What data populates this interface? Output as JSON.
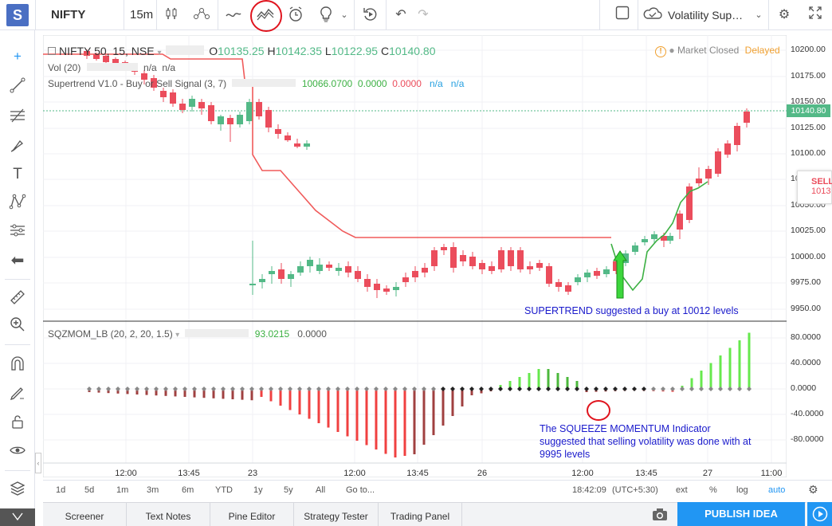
{
  "toolbar": {
    "logo": "S",
    "symbol": "NIFTY",
    "interval": "15m",
    "indicator_name": "Volatility Sup…"
  },
  "legend": {
    "title": "NIFTY 50, 15, NSE",
    "o_label": "O",
    "o_val": "10135.25",
    "h_label": "H",
    "h_val": "10142.35",
    "l_label": "L",
    "l_val": "10122.95",
    "c_label": "C",
    "c_val": "10140.80",
    "market_status": "Market Closed",
    "delayed": "Delayed",
    "vol_label": "Vol (20)",
    "vol_v1": "n/a",
    "vol_v2": "n/a",
    "st_label": "Supertrend V1.0 - Buy or Sell Signal (3, 7)",
    "st_v1": "10066.0700",
    "st_v2": "0.0000",
    "st_v3": "0.0000",
    "st_v4": "n/a",
    "st_v5": "n/a",
    "sq_label": "SQZMOM_LB (20, 2, 20, 1.5)",
    "sq_v1": "93.0215",
    "sq_v2": "0.0000"
  },
  "price_axis": [
    "10200.00",
    "10175.00",
    "10150.00",
    "10125.00",
    "10100.00",
    "10075.00",
    "10050.00",
    "10025.00",
    "10000.00",
    "9975.00",
    "9950.00"
  ],
  "price_tag": "10140.80",
  "sell_tag": {
    "label": "SELL",
    "value": "1013"
  },
  "osc_axis": [
    "80.0000",
    "40.0000",
    "0.0000",
    "-40.0000",
    "-80.0000"
  ],
  "time_axis": [
    "12:00",
    "13:45",
    "23",
    "12:00",
    "13:45",
    "26",
    "12:00",
    "13:45",
    "27",
    "11:00"
  ],
  "annotations": {
    "supertrend": "SUPERTREND suggested a buy at 10012 levels",
    "squeeze_1": "The SQUEEZE MOMENTUM Indicator",
    "squeeze_2": "suggested that selling volatility was done with at",
    "squeeze_3": "9995 levels"
  },
  "bottom": {
    "ranges": [
      "1d",
      "5d",
      "1m",
      "3m",
      "6m",
      "YTD",
      "1y",
      "5y",
      "All"
    ],
    "goto": "Go to...",
    "time": "18:42:09",
    "tz": "(UTC+5:30)",
    "ext": "ext",
    "pct": "%",
    "log": "log",
    "auto": "auto"
  },
  "tabs": [
    "Screener",
    "Text Notes",
    "Pine Editor",
    "Strategy Tester",
    "Trading Panel"
  ],
  "publish": "PUBLISH IDEA",
  "colors": {
    "up": "#53b987",
    "down": "#eb4d5c",
    "supertrend_red": "#f05a5a",
    "supertrend_green": "#3cb043",
    "accent": "#2196f3",
    "osc_lime": "#66e84d",
    "osc_maroon": "#a04040",
    "osc_red": "#f04040"
  }
}
